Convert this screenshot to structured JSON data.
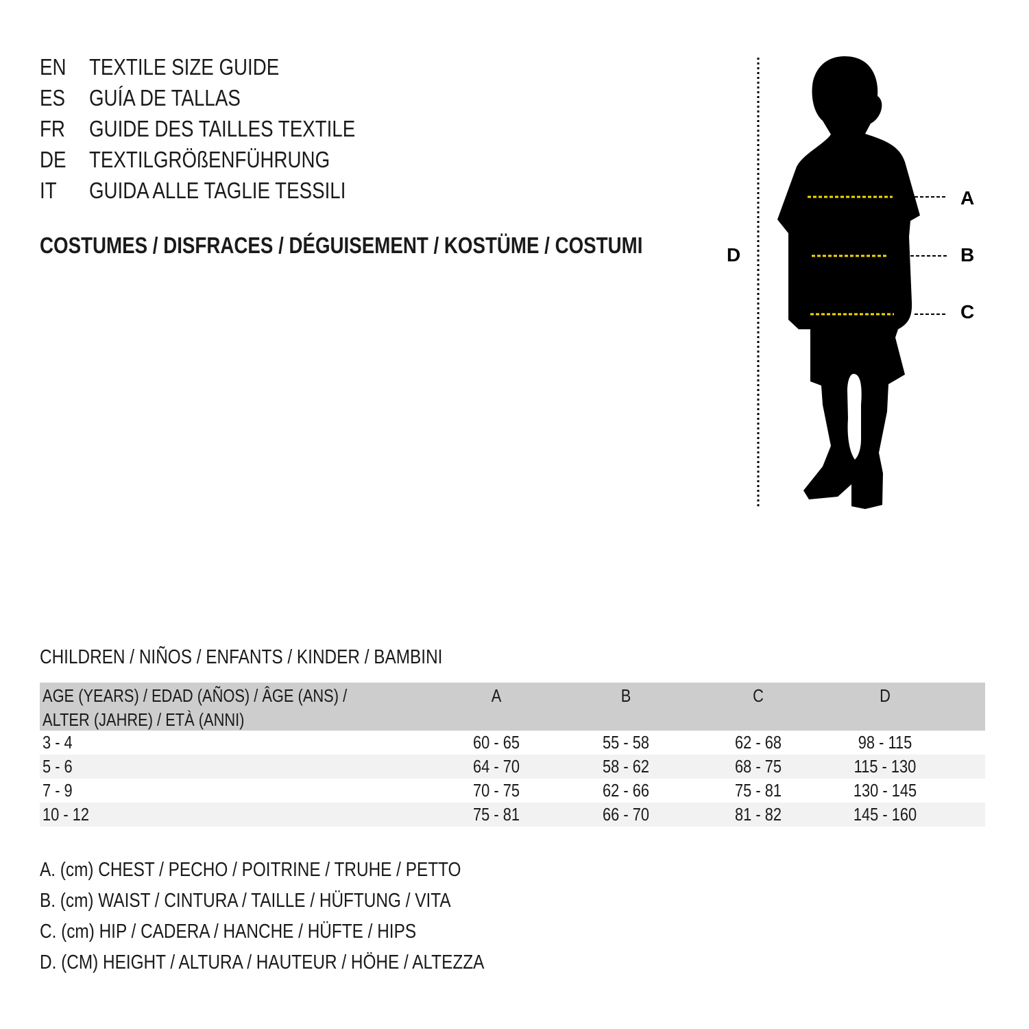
{
  "languages": [
    {
      "code": "EN",
      "title": "TEXTILE SIZE GUIDE"
    },
    {
      "code": "ES",
      "title": "GUÍA DE TALLAS"
    },
    {
      "code": "FR",
      "title": "GUIDE DES TAILLES TEXTILE"
    },
    {
      "code": "DE",
      "title": "TEXTILGRÖßENFÜHRUNG"
    },
    {
      "code": "IT",
      "title": "GUIDA ALLE TAGLIE TESSILI"
    }
  ],
  "category": "COSTUMES / DISFRACES / DÉGUISEMENT / KOSTÜME / COSTUMI",
  "figure": {
    "labels": {
      "a": "A",
      "b": "B",
      "c": "C",
      "d": "D"
    },
    "guide_color": "#f5d800"
  },
  "section_title": "CHILDREN / NIÑOS / ENFANTS / KINDER / BAMBINI",
  "table": {
    "header": {
      "age_line1": "AGE (YEARS) / EDAD (AÑOS) / ÂGE (ANS) /",
      "age_line2": "ALTER (JAHRE) / ETÀ (ANNI)",
      "a": "A",
      "b": "B",
      "c": "C",
      "d": "D"
    },
    "rows": [
      {
        "age": "3 - 4",
        "a": "60 - 65",
        "b": "55 - 58",
        "c": "62 - 68",
        "d": "98 - 115"
      },
      {
        "age": "5 - 6",
        "a": "64 - 70",
        "b": "58 - 62",
        "c": "68 - 75",
        "d": "115 - 130"
      },
      {
        "age": "7 - 9",
        "a": "70 - 75",
        "b": "62 - 66",
        "c": "75 - 81",
        "d": "130 - 145"
      },
      {
        "age": "10 - 12",
        "a": "75 - 81",
        "b": "66 - 70",
        "c": "81 - 82",
        "d": "145 - 160"
      }
    ]
  },
  "legend": [
    "A. (cm) CHEST / PECHO / POITRINE / TRUHE / PETTO",
    "B. (cm) WAIST / CINTURA / TAILLE / HÜFTUNG / VITA",
    "C. (cm) HIP / CADERA / HANCHE / HÜFTE / HIPS",
    "D. (CM) HEIGHT / ALTURA / HAUTEUR / HÖHE / ALTEZZA"
  ]
}
